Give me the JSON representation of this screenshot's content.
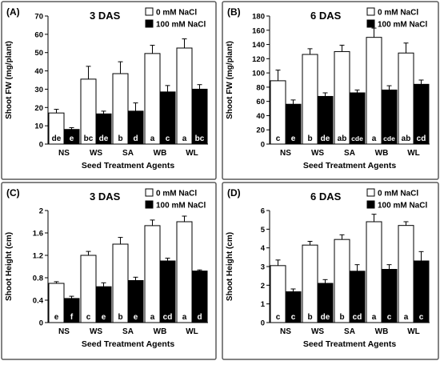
{
  "figure": {
    "xlabel": "Seed Treatment Agents",
    "legend": [
      "0 mM NaCl",
      "100 mM NaCl"
    ],
    "colors": {
      "control": "#ffffff",
      "salt": "#000000",
      "stroke": "#000000",
      "panel_border": "#5a5a5a"
    }
  },
  "chart_data": [
    {
      "type": "bar",
      "panel": "(A)",
      "title": "3 DAS",
      "xlabel": "Seed Treatment Agents",
      "ylabel": "Shoot FW (mg/plant)",
      "ylim": [
        0,
        70
      ],
      "yticks": [
        "0",
        "10",
        "20",
        "30",
        "40",
        "50",
        "60",
        "70"
      ],
      "categories": [
        "NS",
        "WS",
        "SA",
        "WB",
        "WL"
      ],
      "legend_position": "top-right",
      "grid": false,
      "series": [
        {
          "name": "0 mM NaCl",
          "values": [
            17,
            35.5,
            38.5,
            49.5,
            52.5
          ],
          "errors": [
            2,
            7,
            6.5,
            4.5,
            5
          ],
          "letters": [
            "de",
            "bc",
            "b",
            "a",
            "a"
          ]
        },
        {
          "name": "100 mM NaCl",
          "values": [
            8,
            16.5,
            18,
            28.5,
            30
          ],
          "errors": [
            1,
            1.5,
            4.5,
            3.5,
            2.5
          ],
          "letters": [
            "e",
            "de",
            "d",
            "c",
            "bc"
          ]
        }
      ]
    },
    {
      "type": "bar",
      "panel": "(B)",
      "title": "6 DAS",
      "xlabel": "Seed Treatment Agents",
      "ylabel": "Shoot FW (mg/plant)",
      "ylim": [
        0,
        180
      ],
      "yticks": [
        "0",
        "20",
        "40",
        "60",
        "80",
        "100",
        "120",
        "140",
        "160",
        "180"
      ],
      "categories": [
        "NS",
        "WS",
        "SA",
        "WB",
        "WL"
      ],
      "legend_position": "top-right",
      "grid": false,
      "series": [
        {
          "name": "0 mM NaCl",
          "values": [
            89,
            126,
            130,
            150,
            128
          ],
          "errors": [
            15,
            8,
            9,
            13,
            14
          ],
          "letters": [
            "c",
            "b",
            "ab",
            "a",
            "ab"
          ]
        },
        {
          "name": "100 mM NaCl",
          "values": [
            56,
            67,
            72,
            76,
            84
          ],
          "errors": [
            6,
            5,
            4,
            6,
            6
          ],
          "letters": [
            "e",
            "de",
            "cde",
            "cde",
            "cd"
          ]
        }
      ]
    },
    {
      "type": "bar",
      "panel": "(C)",
      "title": "3 DAS",
      "xlabel": "Seed Treatment Agents",
      "ylabel": "Shoot Height (cm)",
      "ylim": [
        0,
        2
      ],
      "yticks": [
        "0",
        "0.4",
        "0.8",
        "1.2",
        "1.6",
        "2"
      ],
      "categories": [
        "NS",
        "WS",
        "SA",
        "WB",
        "WL"
      ],
      "legend_position": "top-right",
      "grid": false,
      "series": [
        {
          "name": "0 mM NaCl",
          "values": [
            0.7,
            1.2,
            1.4,
            1.73,
            1.8
          ],
          "errors": [
            0.03,
            0.07,
            0.12,
            0.1,
            0.1
          ],
          "letters": [
            "e",
            "c",
            "b",
            "a",
            "a"
          ]
        },
        {
          "name": "100 mM NaCl",
          "values": [
            0.43,
            0.64,
            0.75,
            1.1,
            0.92
          ],
          "errors": [
            0.04,
            0.07,
            0.06,
            0.05,
            0.02
          ],
          "letters": [
            "f",
            "e",
            "e",
            "cd",
            "d"
          ]
        }
      ]
    },
    {
      "type": "bar",
      "panel": "(D)",
      "title": "6 DAS",
      "xlabel": "Seed Treatment Agents",
      "ylabel": "Shoot Height (cm)",
      "ylim": [
        0,
        6
      ],
      "yticks": [
        "0",
        "1",
        "2",
        "3",
        "4",
        "5",
        "6"
      ],
      "categories": [
        "NS",
        "WS",
        "SA",
        "WB",
        "WL"
      ],
      "legend_position": "top-right",
      "grid": false,
      "series": [
        {
          "name": "0 mM NaCl",
          "values": [
            3.05,
            4.15,
            4.45,
            5.4,
            5.2
          ],
          "errors": [
            0.3,
            0.2,
            0.25,
            0.4,
            0.2
          ],
          "letters": [
            "c",
            "b",
            "b",
            "a",
            "a"
          ]
        },
        {
          "name": "100 mM NaCl",
          "values": [
            1.65,
            2.1,
            2.75,
            2.85,
            3.3
          ],
          "errors": [
            0.15,
            0.2,
            0.35,
            0.25,
            0.5
          ],
          "letters": [
            "c",
            "de",
            "cd",
            "c",
            "c"
          ]
        }
      ]
    }
  ]
}
